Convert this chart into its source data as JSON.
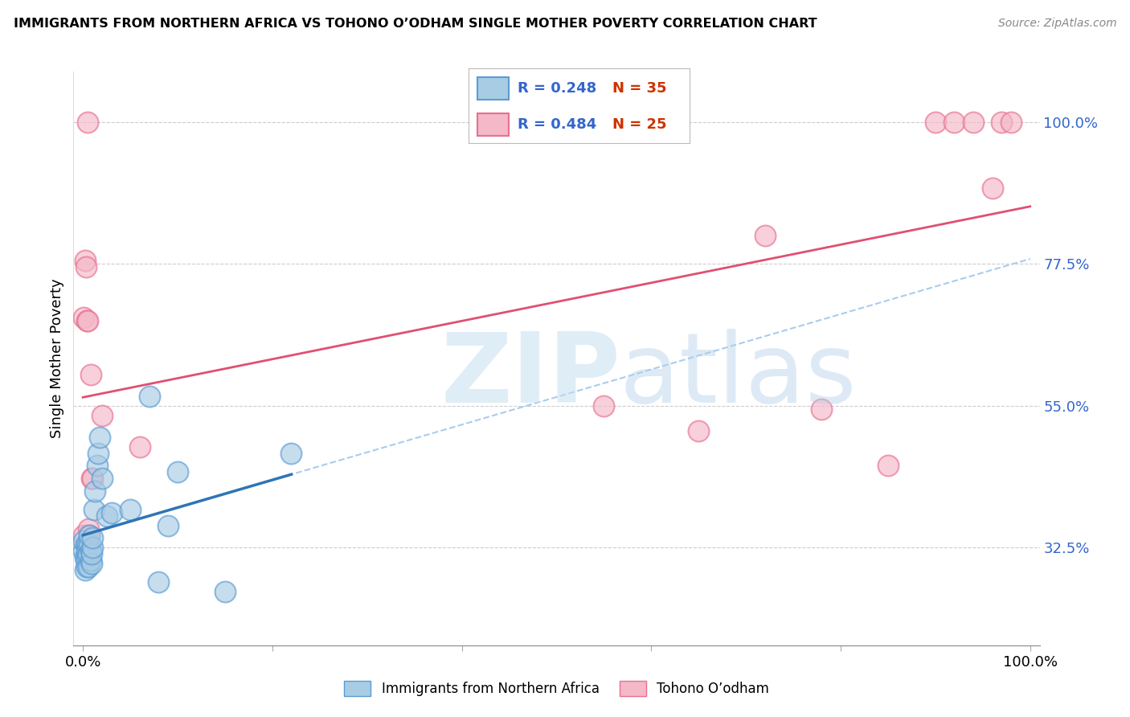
{
  "title": "IMMIGRANTS FROM NORTHERN AFRICA VS TOHONO O’ODHAM SINGLE MOTHER POVERTY CORRELATION CHART",
  "source": "Source: ZipAtlas.com",
  "ylabel": "Single Mother Poverty",
  "right_yticks": [
    0.325,
    0.55,
    0.775,
    1.0
  ],
  "right_yticklabels": [
    "32.5%",
    "55.0%",
    "77.5%",
    "100.0%"
  ],
  "legend_blue_r": "R = 0.248",
  "legend_blue_n": "N = 35",
  "legend_pink_r": "R = 0.484",
  "legend_pink_n": "N = 25",
  "legend_blue_label": "Immigrants from Northern Africa",
  "legend_pink_label": "Tohono O’odham",
  "blue_fill": "#a8cce4",
  "blue_edge": "#5b9bd5",
  "blue_line": "#2e75b6",
  "pink_fill": "#f4b8c8",
  "pink_edge": "#e87090",
  "pink_line": "#e05070",
  "dashed_color": "#aaccee",
  "blue_x": [
    0.001,
    0.001,
    0.002,
    0.002,
    0.003,
    0.003,
    0.004,
    0.004,
    0.005,
    0.005,
    0.006,
    0.006,
    0.007,
    0.007,
    0.008,
    0.008,
    0.009,
    0.009,
    0.01,
    0.01,
    0.012,
    0.013,
    0.015,
    0.016,
    0.018,
    0.02,
    0.025,
    0.03,
    0.05,
    0.07,
    0.08,
    0.09,
    0.1,
    0.15,
    0.22
  ],
  "blue_y": [
    0.32,
    0.335,
    0.29,
    0.31,
    0.305,
    0.33,
    0.295,
    0.32,
    0.31,
    0.33,
    0.295,
    0.315,
    0.33,
    0.345,
    0.305,
    0.32,
    0.3,
    0.315,
    0.325,
    0.34,
    0.385,
    0.415,
    0.455,
    0.475,
    0.5,
    0.435,
    0.375,
    0.38,
    0.385,
    0.565,
    0.27,
    0.36,
    0.445,
    0.255,
    0.475
  ],
  "pink_x": [
    0.001,
    0.001,
    0.002,
    0.003,
    0.004,
    0.005,
    0.005,
    0.006,
    0.007,
    0.008,
    0.009,
    0.01,
    0.02,
    0.06,
    0.55,
    0.65,
    0.72,
    0.78,
    0.85,
    0.9,
    0.92,
    0.94,
    0.96,
    0.97,
    0.98
  ],
  "pink_y": [
    0.345,
    0.69,
    0.78,
    0.77,
    0.685,
    0.685,
    1.0,
    0.355,
    0.345,
    0.6,
    0.435,
    0.435,
    0.535,
    0.485,
    0.55,
    0.51,
    0.82,
    0.545,
    0.455,
    1.0,
    1.0,
    1.0,
    0.895,
    1.0,
    1.0
  ],
  "xlim": [
    -0.01,
    1.01
  ],
  "ylim": [
    0.17,
    1.08
  ]
}
